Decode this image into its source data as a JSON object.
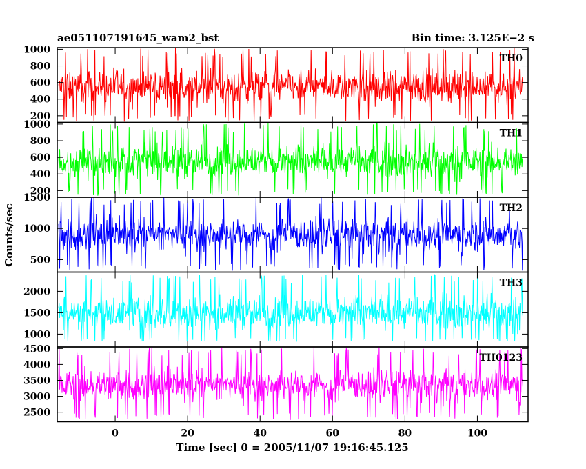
{
  "chart_data": {
    "type": "line",
    "title_left": "ae051107191645_wam2_bst",
    "title_right": "Bin time: 3.125E−2 s",
    "xlabel": "Time [sec] 0 = 2005/11/07 19:16:45.125",
    "ylabel": "Counts/sec",
    "xlim": [
      -16,
      114
    ],
    "x_ticks": [
      0,
      20,
      40,
      60,
      80,
      100
    ],
    "x_tick_labels": [
      "0",
      "20",
      "40",
      "60",
      "80",
      "100"
    ],
    "data_x_range": [
      -15.6,
      112.6
    ],
    "grid": false,
    "panels": [
      {
        "name": "TH0",
        "color": "#ff0000",
        "ylim": [
          120,
          1020
        ],
        "y_ticks": [
          200,
          400,
          600,
          800,
          1000
        ],
        "y_tick_labels": [
          "200",
          "400",
          "600",
          "800",
          "1000"
        ],
        "typical_low": 300,
        "typical_high": 800,
        "min": 130,
        "max": 1020
      },
      {
        "name": "TH1",
        "color": "#00ff00",
        "ylim": [
          120,
          1020
        ],
        "y_ticks": [
          200,
          400,
          600,
          800,
          1000
        ],
        "y_tick_labels": [
          "200",
          "400",
          "600",
          "800",
          "1000"
        ],
        "typical_low": 300,
        "typical_high": 800,
        "min": 140,
        "max": 1010
      },
      {
        "name": "TH2",
        "color": "#0000ff",
        "ylim": [
          300,
          1500
        ],
        "y_ticks": [
          500,
          1000,
          1500
        ],
        "y_tick_labels": [
          "500",
          "1000",
          "1500"
        ],
        "typical_low": 550,
        "typical_high": 1250,
        "min": 320,
        "max": 1500
      },
      {
        "name": "TH3",
        "color": "#00ffff",
        "ylim": [
          700,
          2450
        ],
        "y_ticks": [
          1000,
          1500,
          2000
        ],
        "y_tick_labels": [
          "1000",
          "1500",
          "2000"
        ],
        "typical_low": 1000,
        "typical_high": 2000,
        "min": 820,
        "max": 2390
      },
      {
        "name": "TH0123",
        "color": "#ff00ff",
        "ylim": [
          2200,
          4550
        ],
        "y_ticks": [
          2500,
          3000,
          3500,
          4000,
          4500
        ],
        "y_tick_labels": [
          "2500",
          "3000",
          "3500",
          "4000",
          "4500"
        ],
        "typical_low": 2700,
        "typical_high": 4000,
        "min": 2250,
        "max": 4550
      }
    ]
  }
}
